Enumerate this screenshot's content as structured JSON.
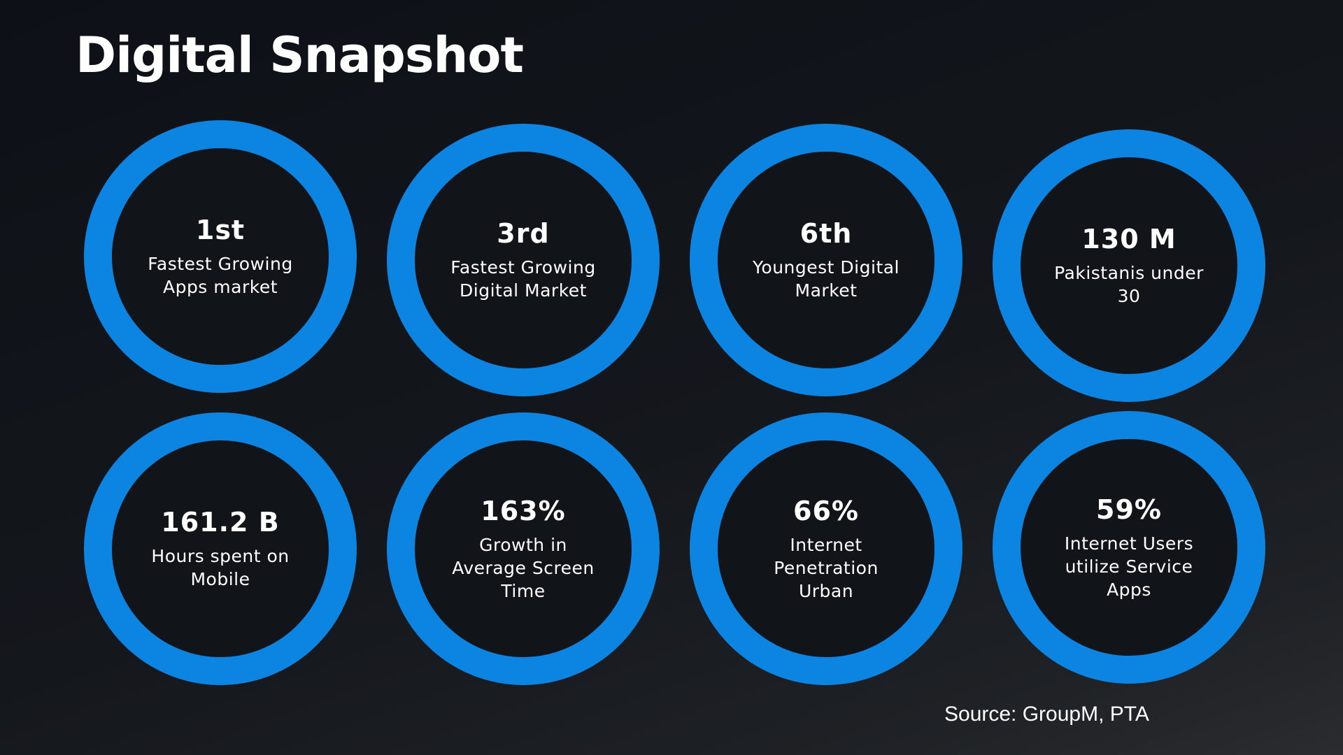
{
  "page": {
    "title": "Digital Snapshot",
    "source": "Source: GroupM, PTA"
  },
  "colors": {
    "background": "#111418",
    "ring": "#0c84e2",
    "text": "#ffffff"
  },
  "stats": [
    {
      "value": "1st",
      "label": "Fastest Growing Apps market"
    },
    {
      "value": "3rd",
      "label": "Fastest Growing Digital Market"
    },
    {
      "value": "6th",
      "label": "Youngest Digital Market"
    },
    {
      "value": "130 M",
      "label": "Pakistanis under 30"
    },
    {
      "value": "161.2 B",
      "label": "Hours spent on Mobile"
    },
    {
      "value": "163%",
      "label": "Growth in Average Screen Time"
    },
    {
      "value": "66%",
      "label": "Internet Penetration Urban"
    },
    {
      "value": "59%",
      "label": "Internet Users utilize Service Apps"
    }
  ]
}
